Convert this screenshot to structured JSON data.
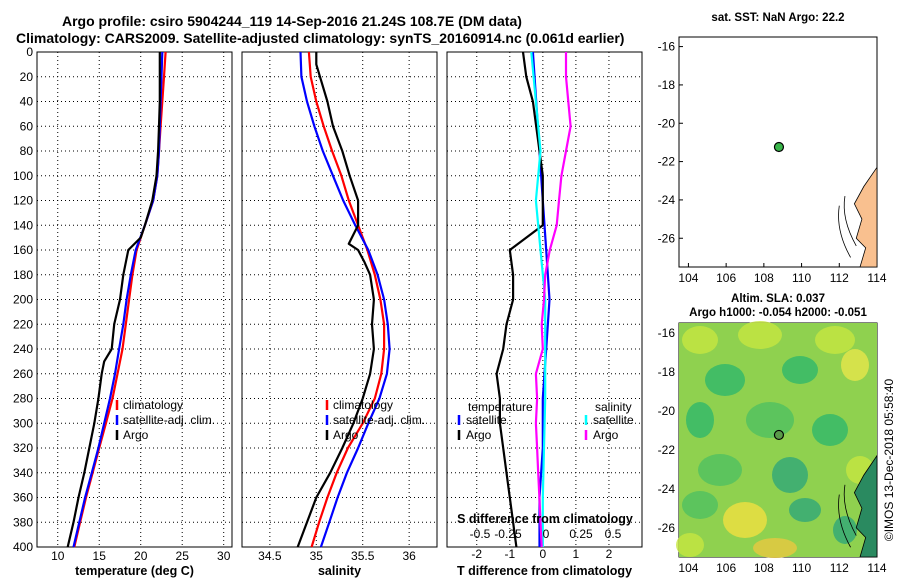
{
  "title_line1": "Argo profile: csiro 5904244_119 14-Sep-2016 21.24S 108.7E (DM data)",
  "title_line2": "Climatology: CARS2009. Satellite-adjusted climatology: synTS_20160914.nc (0.061d earlier)",
  "map_top_title": "sat. SST: NaN Argo: 22.2",
  "altim_line1": "Altim. SLA: 0.037",
  "altim_line2": "Argo h1000: -0.054 h2000: -0.051",
  "credit": "©IMOS 13-Dec-2018 05:58:40",
  "colors": {
    "climatology": "#ff0000",
    "satellite": "#0000ff",
    "argo": "#000000",
    "s_sat": "#00ffff",
    "s_argo": "#ff00ff",
    "land": "#f9c08f"
  },
  "chart_data": [
    {
      "type": "line",
      "name": "temperature",
      "xlabel": "temperature (deg C)",
      "ylabel": "depth",
      "xlim": [
        7.5,
        31
      ],
      "ylim": [
        400,
        0
      ],
      "xticks": [
        10,
        15,
        20,
        25,
        30
      ],
      "yticks": [
        0,
        20,
        40,
        60,
        80,
        100,
        120,
        140,
        160,
        180,
        200,
        220,
        240,
        260,
        280,
        300,
        320,
        340,
        360,
        380,
        400
      ],
      "legend": [
        "climatology",
        "satellite-adj. clim.",
        "Argo"
      ],
      "series": [
        {
          "name": "climatology",
          "depth": [
            0,
            20,
            40,
            60,
            80,
            100,
            120,
            140,
            160,
            180,
            200,
            220,
            240,
            260,
            280,
            300,
            320,
            340,
            360,
            380,
            400
          ],
          "values": [
            23.0,
            22.8,
            22.6,
            22.4,
            22.2,
            22.0,
            21.5,
            20.5,
            19.5,
            19.0,
            18.6,
            18.2,
            17.8,
            17.2,
            16.6,
            15.8,
            15.0,
            14.2,
            13.4,
            12.7,
            12.0
          ]
        },
        {
          "name": "satellite-adj. clim.",
          "depth": [
            0,
            20,
            40,
            60,
            80,
            100,
            120,
            140,
            160,
            180,
            200,
            220,
            240,
            260,
            280,
            300,
            320,
            340,
            360,
            380,
            400
          ],
          "values": [
            22.6,
            22.5,
            22.4,
            22.3,
            22.2,
            22.0,
            21.5,
            20.5,
            19.4,
            18.8,
            18.3,
            17.9,
            17.4,
            16.9,
            16.3,
            15.6,
            14.9,
            14.1,
            13.3,
            12.6,
            11.9
          ]
        },
        {
          "name": "Argo",
          "depth": [
            0,
            20,
            40,
            60,
            80,
            100,
            120,
            140,
            150,
            160,
            180,
            200,
            220,
            240,
            250,
            260,
            280,
            300,
            320,
            340,
            360,
            380,
            400
          ],
          "values": [
            22.3,
            22.3,
            22.3,
            22.2,
            22.1,
            21.9,
            21.4,
            20.5,
            20.0,
            18.5,
            17.9,
            17.5,
            16.8,
            16.5,
            15.6,
            15.3,
            14.9,
            14.4,
            13.8,
            13.2,
            12.5,
            11.9,
            11.2
          ]
        }
      ]
    },
    {
      "type": "line",
      "name": "salinity",
      "xlabel": "salinity",
      "ylabel": "depth",
      "xlim": [
        34.2,
        36.3
      ],
      "ylim": [
        400,
        0
      ],
      "xticks": [
        34.5,
        35,
        35.5,
        36
      ],
      "legend": [
        "climatology",
        "satellite-adj. clim.",
        "Argo"
      ],
      "series": [
        {
          "name": "climatology",
          "depth": [
            0,
            20,
            40,
            60,
            80,
            100,
            120,
            140,
            160,
            180,
            200,
            220,
            240,
            260,
            280,
            300,
            320,
            340,
            360,
            380,
            400
          ],
          "values": [
            34.92,
            34.94,
            35.0,
            35.08,
            35.17,
            35.27,
            35.35,
            35.45,
            35.55,
            35.63,
            35.69,
            35.73,
            35.73,
            35.7,
            35.63,
            35.5,
            35.34,
            35.22,
            35.12,
            35.03,
            34.95
          ]
        },
        {
          "name": "satellite-adj. clim.",
          "depth": [
            0,
            20,
            40,
            60,
            80,
            100,
            120,
            140,
            160,
            180,
            200,
            220,
            240,
            260,
            280,
            300,
            320,
            340,
            360,
            380,
            400
          ],
          "values": [
            34.83,
            34.84,
            34.9,
            34.98,
            35.07,
            35.18,
            35.29,
            35.42,
            35.56,
            35.66,
            35.73,
            35.77,
            35.79,
            35.76,
            35.68,
            35.56,
            35.45,
            35.33,
            35.23,
            35.14,
            35.05
          ]
        },
        {
          "name": "Argo",
          "depth": [
            0,
            10,
            20,
            40,
            60,
            80,
            100,
            120,
            140,
            155,
            160,
            170,
            180,
            200,
            220,
            240,
            260,
            280,
            300,
            320,
            340,
            360,
            380,
            400
          ],
          "values": [
            35.0,
            35.0,
            35.04,
            35.12,
            35.18,
            35.28,
            35.36,
            35.45,
            35.45,
            35.35,
            35.45,
            35.52,
            35.58,
            35.62,
            35.6,
            35.62,
            35.58,
            35.5,
            35.4,
            35.28,
            35.15,
            35.0,
            34.9,
            34.8
          ]
        }
      ]
    },
    {
      "type": "line",
      "name": "differences",
      "xlabel": "T difference from climatology",
      "xlabel_top": "S difference from climatology",
      "xlim": [
        -2.9,
        3.0
      ],
      "ylim": [
        400,
        0
      ],
      "xticks": [
        -2,
        -1,
        0,
        1,
        2
      ],
      "xticks_top": [
        "-0.5",
        "-0.25",
        "0",
        "0.25",
        "0.5"
      ],
      "legend_heads": [
        "temperature",
        "salinity"
      ],
      "legend": [
        "satellite",
        "Argo",
        "satellite",
        "Argo"
      ],
      "series": [
        {
          "name": "T satellite",
          "depth": [
            0,
            40,
            80,
            120,
            160,
            200,
            240,
            280,
            320,
            360,
            400
          ],
          "values": [
            -0.3,
            -0.2,
            -0.1,
            0.0,
            0.1,
            0.2,
            0.1,
            0.0,
            0.0,
            -0.1,
            -0.1
          ]
        },
        {
          "name": "T Argo",
          "depth": [
            0,
            20,
            40,
            60,
            80,
            100,
            120,
            140,
            160,
            180,
            200,
            220,
            240,
            260,
            280,
            300,
            320,
            340,
            360,
            380,
            400
          ],
          "values": [
            -0.6,
            -0.5,
            -0.3,
            -0.2,
            -0.1,
            0.0,
            0.0,
            0.0,
            -1.0,
            -0.9,
            -0.9,
            -1.1,
            -1.2,
            -1.4,
            -1.3,
            -1.3,
            -1.2,
            -1.1,
            -1.0,
            -0.9,
            -0.8
          ]
        },
        {
          "name": "S satellite",
          "depth": [
            0,
            40,
            80,
            120,
            160,
            200,
            240,
            280,
            320,
            360,
            400
          ],
          "values": [
            -0.1,
            -0.06,
            -0.02,
            -0.06,
            -0.02,
            0.02,
            0.02,
            0.02,
            0.01,
            0.0,
            0.0
          ]
        },
        {
          "name": "S Argo",
          "depth": [
            0,
            20,
            40,
            60,
            80,
            100,
            120,
            140,
            160,
            180,
            200,
            220,
            240,
            260,
            280,
            300,
            320,
            340,
            360,
            380,
            400
          ],
          "values": [
            0.2,
            0.2,
            0.22,
            0.24,
            0.2,
            0.16,
            0.14,
            0.12,
            0.06,
            0.02,
            0.01,
            -0.01,
            0.0,
            -0.06,
            -0.05,
            -0.06,
            -0.05,
            -0.04,
            -0.03,
            -0.02,
            -0.01
          ]
        }
      ]
    },
    {
      "type": "scatter",
      "name": "sst-map",
      "xlim": [
        103.5,
        114
      ],
      "ylim": [
        -27.5,
        -15.5
      ],
      "xticks": [
        104,
        106,
        108,
        110,
        112,
        114
      ],
      "yticks": [
        -16,
        -18,
        -20,
        -22,
        -24,
        -26
      ],
      "points": [
        {
          "lon": 108.8,
          "lat": -21.24
        }
      ]
    },
    {
      "type": "heatmap",
      "name": "sla-map",
      "xlim": [
        103.5,
        114
      ],
      "ylim": [
        -27.5,
        -15.5
      ],
      "xticks": [
        104,
        106,
        108,
        110,
        112,
        114
      ],
      "yticks": [
        -16,
        -18,
        -20,
        -22,
        -24,
        -26
      ],
      "points": [
        {
          "lon": 108.8,
          "lat": -21.24
        }
      ]
    }
  ]
}
